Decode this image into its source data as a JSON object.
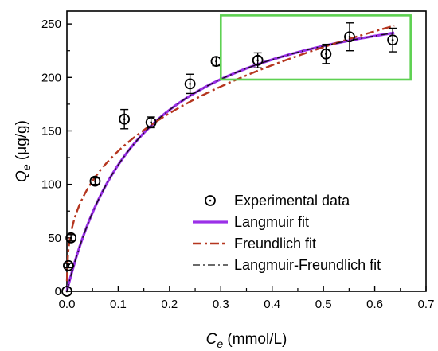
{
  "chart_data": {
    "type": "scatter",
    "xlabel": {
      "var": "C",
      "sub": "e",
      "unit": " (mmol/L)"
    },
    "ylabel": {
      "var": "Q",
      "sub": "e",
      "unit": " (μg/g)"
    },
    "xlim": [
      0,
      0.7
    ],
    "ylim": [
      0,
      262
    ],
    "xticks": [
      0.0,
      0.1,
      0.2,
      0.3,
      0.4,
      0.5,
      0.6,
      0.7
    ],
    "xtick_labels": [
      "0.0",
      "0.1",
      "0.2",
      "0.3",
      "0.4",
      "0.5",
      "0.6",
      "0.7"
    ],
    "yticks": [
      0,
      50,
      100,
      150,
      200,
      250
    ],
    "ytick_labels": [
      "0",
      "50",
      "100",
      "150",
      "200",
      "250"
    ],
    "experimental": {
      "name": "Experimental data",
      "points": [
        {
          "x": 0.0,
          "y": 0,
          "err": 0
        },
        {
          "x": 0.003,
          "y": 24,
          "err": 2
        },
        {
          "x": 0.008,
          "y": 50,
          "err": 3
        },
        {
          "x": 0.055,
          "y": 103,
          "err": 3
        },
        {
          "x": 0.112,
          "y": 161,
          "err": 9
        },
        {
          "x": 0.164,
          "y": 158,
          "err": 5
        },
        {
          "x": 0.24,
          "y": 194,
          "err": 9
        },
        {
          "x": 0.291,
          "y": 215,
          "err": 4
        },
        {
          "x": 0.372,
          "y": 216,
          "err": 7
        },
        {
          "x": 0.505,
          "y": 222,
          "err": 9
        },
        {
          "x": 0.551,
          "y": 238,
          "err": 13
        },
        {
          "x": 0.635,
          "y": 235,
          "err": 11
        }
      ]
    },
    "fits": [
      {
        "name": "Langmuir fit",
        "model": "langmuir",
        "qmax": 300,
        "K": 6.5,
        "color": "#9b30e8",
        "dash": "solid"
      },
      {
        "name": "Freundlich fit",
        "model": "freundlich",
        "Kf": 290,
        "n": 2.9,
        "color": "#b5361f",
        "dash": "dashdot"
      },
      {
        "name": "Langmuir-Freundlich fit",
        "model": "langmuir",
        "qmax": 300,
        "K": 6.5,
        "color": "#111111",
        "dash": "dashdot-thin"
      }
    ],
    "legend_position": "bottom-right",
    "highlight_box": {
      "x": [
        0.3,
        0.67
      ],
      "y": [
        198,
        258
      ],
      "color": "#5ed152"
    },
    "grid": false
  }
}
